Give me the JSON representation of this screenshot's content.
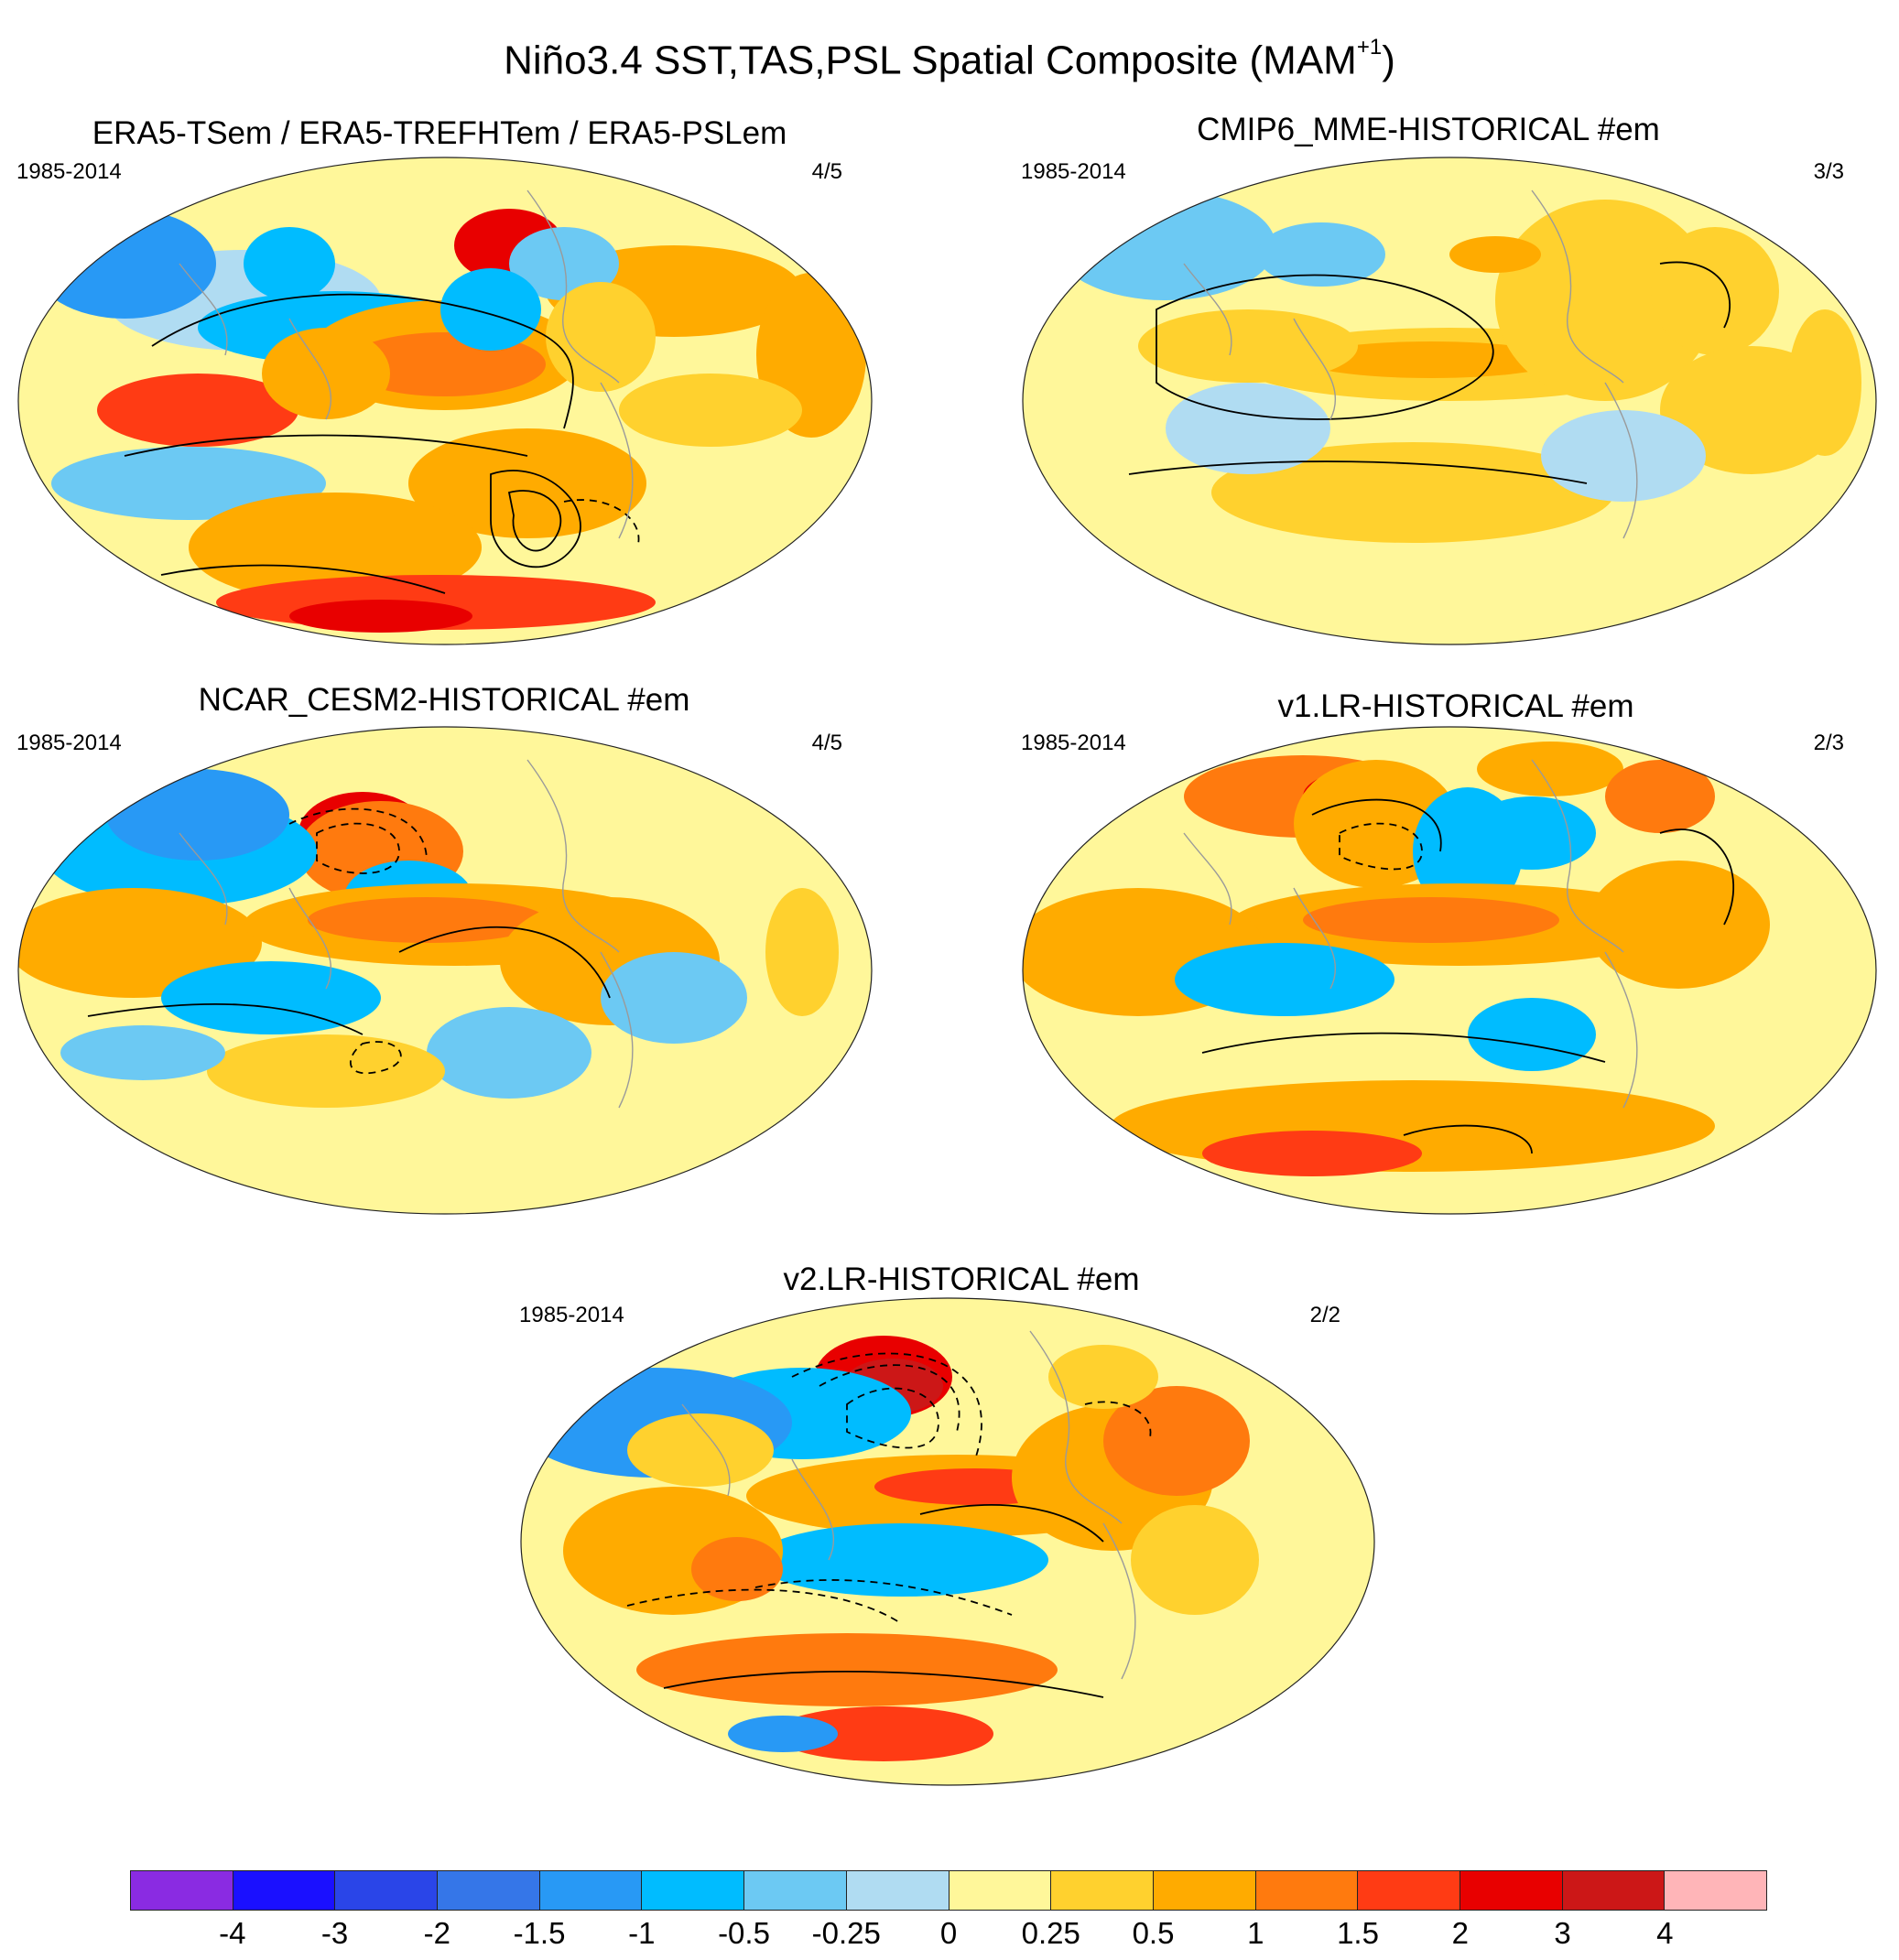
{
  "figure": {
    "title": "Niño3.4 SST,TAS,PSL Spatial Composite (MAM",
    "title_superscript": "+1",
    "title_close": ")"
  },
  "panels": [
    {
      "id": "era5",
      "title": "ERA5-TSem / ERA5-TREFHTem / ERA5-PSLem",
      "years": "1985-2014",
      "count": "4/5",
      "pattern": "observed-noisy"
    },
    {
      "id": "cmip6",
      "title": "CMIP6_MME-HISTORICAL  #em",
      "years": "1985-2014",
      "count": "3/3",
      "pattern": "smooth-weak"
    },
    {
      "id": "cesm2",
      "title": "NCAR_CESM2-HISTORICAL  #em",
      "years": "1985-2014",
      "count": "4/5",
      "pattern": "moderate"
    },
    {
      "id": "v1lr",
      "title": "v1.LR-HISTORICAL  #em",
      "years": "1985-2014",
      "count": "2/3",
      "pattern": "moderate-strong"
    },
    {
      "id": "v2lr",
      "title": "v2.LR-HISTORICAL  #em",
      "years": "1985-2014",
      "count": "2/2",
      "pattern": "strong"
    }
  ],
  "legend": {
    "labels": [
      "-4",
      "-3",
      "-2",
      "-1.5",
      "-1",
      "-0.5",
      "-0.25",
      "0",
      "0.25",
      "0.5",
      "1",
      "1.5",
      "2",
      "3",
      "4"
    ],
    "colors": [
      "#8a2be2",
      "#1a10ff",
      "#2a45e8",
      "#3576e8",
      "#2899f5",
      "#00bcff",
      "#6cc9f3",
      "#b0dcf2",
      "#fff79a",
      "#ffd12e",
      "#ffab00",
      "#ff7a0e",
      "#ff3b14",
      "#e80000",
      "#cc1717",
      "#ffb5b8"
    ]
  },
  "colors": {
    "ocean_background": "#fff79a",
    "contour_line": "#000000",
    "coastline": "#9a9a9a"
  }
}
